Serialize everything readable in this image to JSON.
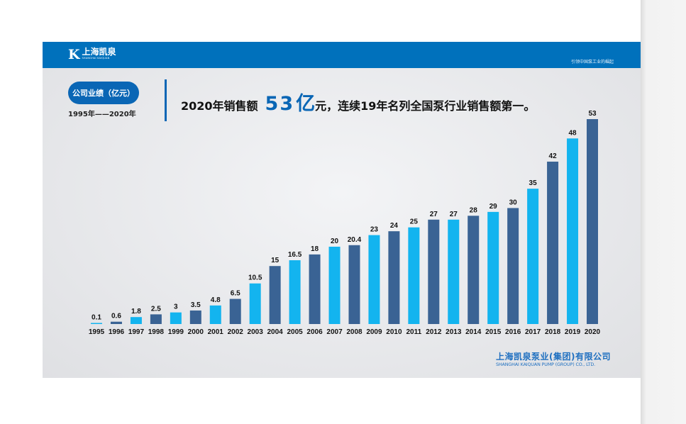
{
  "header": {
    "logo_cn": "上海凯泉",
    "logo_en": "SHANGHAI KAIQUAN",
    "logo_mark": "K",
    "tagline": "引领中国泵工业的崛起"
  },
  "section": {
    "pill": "公司业绩（亿元）",
    "range": "1995年——2020年"
  },
  "headline": {
    "prefix": "2020年销售额",
    "highlight_num": "53",
    "highlight_unit": "亿",
    "suffix": "元，连续19年名列全国泵行业销售额第一。"
  },
  "footer": {
    "company_cn": "上海凯泉泵业(集团)有限公司",
    "company_en": "SHANGHAI KAIQUAN PUMP (GROUP) CO., LTD."
  },
  "colors": {
    "dark": "#3a6394",
    "light": "#13b4ef",
    "brand": "#0071bc"
  },
  "chart_data": {
    "type": "bar",
    "categories": [
      "1995",
      "1996",
      "1997",
      "1998",
      "1999",
      "2000",
      "2001",
      "2002",
      "2003",
      "2004",
      "2005",
      "2006",
      "2007",
      "2008",
      "2009",
      "2010",
      "2011",
      "2012",
      "2013",
      "2014",
      "2015",
      "2016",
      "2017",
      "2018",
      "2019",
      "2020"
    ],
    "values": [
      0.1,
      0.6,
      1.8,
      2.5,
      3,
      3.5,
      4.8,
      6.5,
      10.5,
      15,
      16.5,
      18,
      20,
      20.4,
      23,
      24,
      25,
      27,
      27,
      28,
      29,
      30,
      35,
      42,
      48,
      53
    ],
    "labels": [
      "0.1",
      "0.6",
      "1.8",
      "2.5",
      "3",
      "3.5",
      "4.8",
      "6.5",
      "10.5",
      "15",
      "16.5",
      "18",
      "20",
      "20.4",
      "23",
      "24",
      "25",
      "27",
      "27",
      "28",
      "29",
      "30",
      "35",
      "42",
      "48",
      "53"
    ],
    "bar_colors": [
      "light",
      "dark",
      "light",
      "dark",
      "light",
      "dark",
      "light",
      "dark",
      "light",
      "dark",
      "light",
      "dark",
      "light",
      "dark",
      "light",
      "dark",
      "light",
      "dark",
      "light",
      "dark",
      "light",
      "dark",
      "light",
      "dark",
      "light",
      "dark"
    ],
    "title": "",
    "xlabel": "",
    "ylabel": "",
    "ylim": [
      0,
      53
    ],
    "grid": false,
    "legend": "none"
  }
}
